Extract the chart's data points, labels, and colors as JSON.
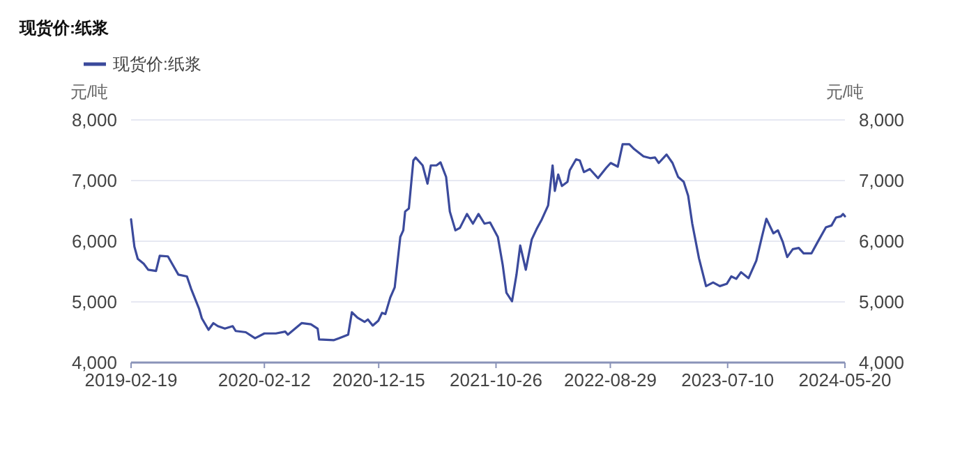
{
  "chart_data": {
    "type": "line",
    "title": "现货价:纸浆",
    "ylabel": "元/吨",
    "y2label": "元/吨",
    "legend": "top left",
    "grid": "y",
    "marker": "none",
    "line_style": "solid",
    "x": [
      "2019-02-19",
      "2019-02-28",
      "2019-03-09",
      "2019-03-25",
      "2019-04-06",
      "2019-04-27",
      "2019-05-07",
      "2019-05-29",
      "2019-06-10",
      "2019-06-26",
      "2019-07-19",
      "2019-07-30",
      "2019-08-21",
      "2019-08-28",
      "2019-09-15",
      "2019-09-28",
      "2019-10-10",
      "2019-10-29",
      "2019-11-19",
      "2019-11-27",
      "2019-12-24",
      "2020-01-18",
      "2020-02-12",
      "2020-03-14",
      "2020-04-08",
      "2020-04-15",
      "2020-05-22",
      "2020-06-16",
      "2020-07-04",
      "2020-07-08",
      "2020-08-17",
      "2020-08-30",
      "2020-09-24",
      "2020-10-04",
      "2020-10-19",
      "2020-11-07",
      "2020-11-16",
      "2020-11-29",
      "2020-12-14",
      "2020-12-24",
      "2021-01-02",
      "2021-01-15",
      "2021-01-27",
      "2021-02-11",
      "2021-02-19",
      "2021-02-24",
      "2021-03-06",
      "2021-03-18",
      "2021-03-24",
      "2021-04-12",
      "2021-04-25",
      "2021-05-04",
      "2021-05-19",
      "2021-05-30",
      "2021-06-14",
      "2021-06-24",
      "2021-07-09",
      "2021-07-21",
      "2021-08-09",
      "2021-08-25",
      "2021-09-09",
      "2021-09-25",
      "2021-10-10",
      "2021-10-31",
      "2021-11-13",
      "2021-11-23",
      "2021-12-08",
      "2021-12-20",
      "2021-12-30",
      "2022-01-14",
      "2022-01-30",
      "2022-02-12",
      "2022-02-26",
      "2022-03-15",
      "2022-03-27",
      "2022-04-02",
      "2022-04-11",
      "2022-04-21",
      "2022-05-06",
      "2022-05-12",
      "2022-05-29",
      "2022-06-08",
      "2022-06-19",
      "2022-07-05",
      "2022-07-27",
      "2022-08-18",
      "2022-08-30",
      "2022-09-18",
      "2022-10-01",
      "2022-10-19",
      "2022-11-01",
      "2022-11-26",
      "2022-12-14",
      "2022-12-27",
      "2023-01-06",
      "2023-01-27",
      "2023-02-12",
      "2023-02-27",
      "2023-03-14",
      "2023-03-26",
      "2023-04-06",
      "2023-04-24",
      "2023-05-13",
      "2023-06-01",
      "2023-06-19",
      "2023-07-08",
      "2023-07-20",
      "2023-08-02",
      "2023-08-15",
      "2023-09-04",
      "2023-09-25",
      "2023-10-10",
      "2023-10-22",
      "2023-11-10",
      "2023-11-22",
      "2023-12-05",
      "2023-12-17",
      "2024-01-01",
      "2024-01-17",
      "2024-01-30",
      "2024-02-20",
      "2024-03-08",
      "2024-03-30",
      "2024-04-14",
      "2024-04-26",
      "2024-05-09",
      "2024-05-15",
      "2024-05-20"
    ],
    "series": [
      {
        "name": "现货价:纸浆",
        "color": "#3b4a9c",
        "values": [
          6360,
          5910,
          5710,
          5630,
          5530,
          5510,
          5760,
          5750,
          5620,
          5450,
          5420,
          5220,
          4880,
          4730,
          4540,
          4650,
          4600,
          4560,
          4600,
          4520,
          4500,
          4400,
          4480,
          4480,
          4510,
          4460,
          4650,
          4630,
          4560,
          4380,
          4370,
          4400,
          4460,
          4830,
          4740,
          4670,
          4710,
          4610,
          4690,
          4820,
          4800,
          5070,
          5240,
          6070,
          6180,
          6490,
          6540,
          7330,
          7380,
          7250,
          6950,
          7250,
          7250,
          7300,
          7060,
          6490,
          6180,
          6220,
          6450,
          6290,
          6450,
          6290,
          6310,
          6070,
          5610,
          5150,
          5010,
          5450,
          5930,
          5530,
          6030,
          6200,
          6360,
          6590,
          7250,
          6830,
          7100,
          6910,
          6980,
          7170,
          7350,
          7330,
          7140,
          7190,
          7040,
          7210,
          7290,
          7230,
          7600,
          7600,
          7520,
          7400,
          7370,
          7380,
          7290,
          7430,
          7290,
          7060,
          6980,
          6750,
          6290,
          5720,
          5260,
          5320,
          5260,
          5300,
          5420,
          5380,
          5490,
          5390,
          5680,
          6070,
          6370,
          6130,
          6180,
          5990,
          5740,
          5870,
          5890,
          5800,
          5800,
          5990,
          6230,
          6260,
          6390,
          6410,
          6450,
          6410
        ]
      }
    ],
    "xlim": [
      "2019-02-19",
      "2024-05-20"
    ],
    "xticks": [
      "2019-02-19",
      "2020-02-12",
      "2020-12-15",
      "2021-10-26",
      "2022-08-29",
      "2023-07-10",
      "2024-05-20"
    ],
    "ylim": [
      4000,
      8000
    ],
    "yticks": [
      {
        "value": 4000,
        "label": "4,000"
      },
      {
        "value": 5000,
        "label": "5,000"
      },
      {
        "value": 6000,
        "label": "6,000"
      },
      {
        "value": 7000,
        "label": "7,000"
      },
      {
        "value": 8000,
        "label": "8,000"
      }
    ],
    "y2lim": [
      4000,
      8000
    ],
    "y2ticks": [
      {
        "value": 4000,
        "label": "4,000"
      },
      {
        "value": 5000,
        "label": "5,000"
      },
      {
        "value": 6000,
        "label": "6,000"
      },
      {
        "value": 7000,
        "label": "7,000"
      },
      {
        "value": 8000,
        "label": "8,000"
      }
    ]
  }
}
